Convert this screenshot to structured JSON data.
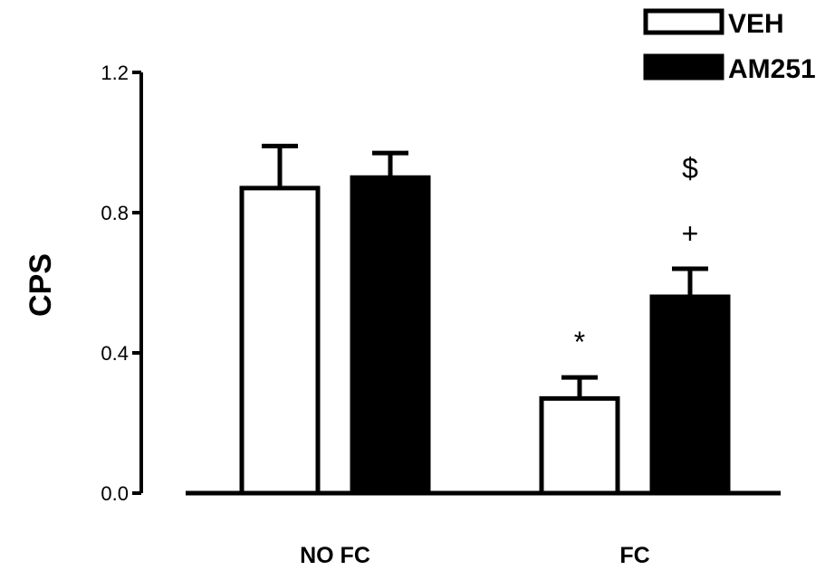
{
  "chart_data": {
    "type": "bar",
    "ylabel": "CPS",
    "xlabel": "",
    "ylim": [
      0,
      1.2
    ],
    "yticks": [
      "0.0",
      "0.4",
      "0.8",
      "1.2"
    ],
    "categories": [
      "NO FC",
      "FC"
    ],
    "series": [
      {
        "name": "VEH",
        "values": [
          0.87,
          0.27
        ],
        "errors": [
          0.12,
          0.06
        ],
        "fill": "#ffffff",
        "stroke": "#000000"
      },
      {
        "name": "AM251",
        "values": [
          0.9,
          0.56
        ],
        "errors": [
          0.07,
          0.08
        ],
        "fill": "#000000",
        "stroke": "#000000"
      }
    ],
    "annotations": [
      {
        "text": "*",
        "category": 1,
        "series": 0,
        "level": 1
      },
      {
        "text": "+",
        "category": 1,
        "series": 1,
        "level": 1
      },
      {
        "text": "$",
        "category": 1,
        "series": 1,
        "level": 2
      }
    ],
    "legend_position": "top-right",
    "grid": false
  }
}
